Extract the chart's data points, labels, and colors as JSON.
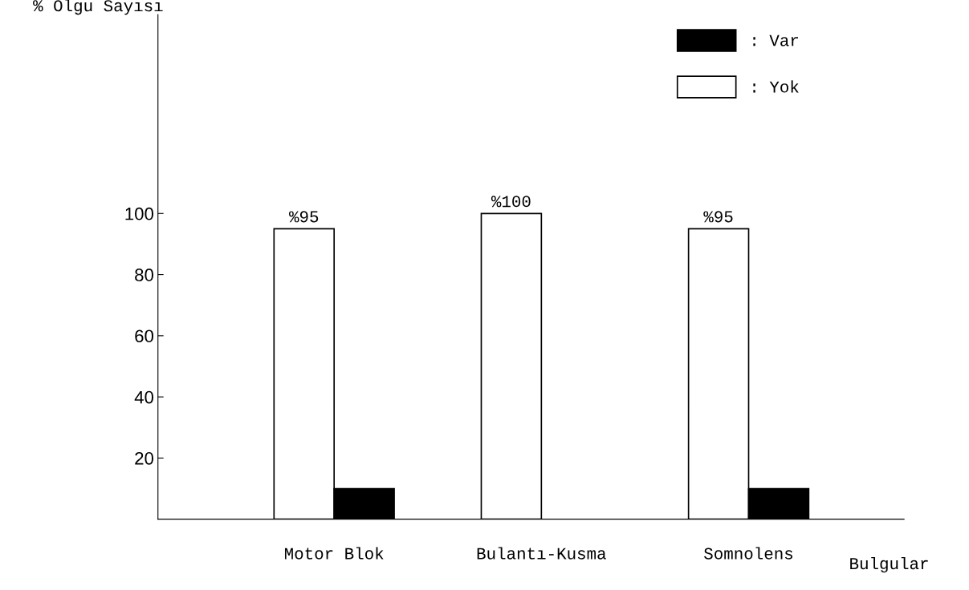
{
  "chart_data": {
    "type": "bar",
    "ylabel": "% Olgu Sayısı",
    "xlabel": "Bulgular",
    "categories": [
      "Motor Blok",
      "Bulantı-Kusma",
      "Somnolens"
    ],
    "series": [
      {
        "name": ": Yok",
        "color": "#ffffff",
        "values": [
          95,
          100,
          95
        ],
        "value_labels": [
          "%95",
          "%100",
          "%95"
        ]
      },
      {
        "name": ": Var",
        "color": "#000000",
        "values": [
          10,
          null,
          10
        ]
      }
    ],
    "ylim": [
      0,
      165
    ],
    "yticks": [
      20,
      40,
      60,
      80,
      100
    ],
    "grid": false,
    "legend": "top right"
  }
}
